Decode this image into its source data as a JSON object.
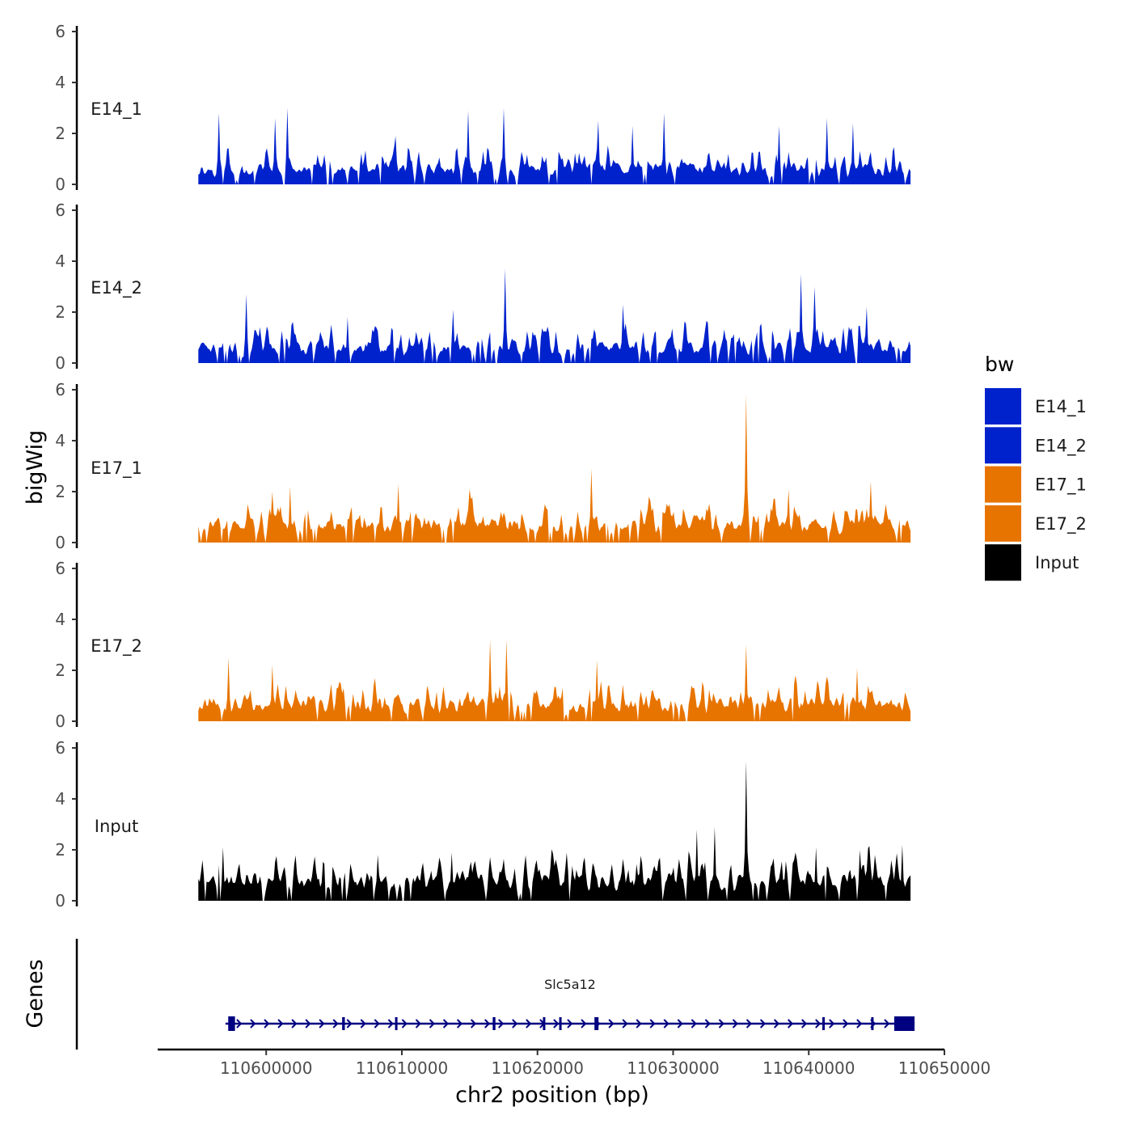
{
  "chart_data": {
    "type": "area",
    "chromosome": "chr2",
    "xlabel": "chr2 position (bp)",
    "ylabel": "bigWig",
    "xlim": [
      110592000,
      110650000
    ],
    "x_ticks": [
      110600000,
      110610000,
      110620000,
      110630000,
      110640000,
      110650000
    ],
    "x_tick_labels": [
      "110600000",
      "110610000",
      "110620000",
      "110630000",
      "110640000",
      "110650000"
    ],
    "ylim": [
      0,
      6
    ],
    "y_ticks": [
      0,
      2,
      4,
      6
    ],
    "y_tick_labels": [
      "0",
      "2",
      "4",
      "6"
    ],
    "signal_range": [
      110595000,
      110647500
    ],
    "series": [
      {
        "name": "E14_1",
        "color": "#0022CC",
        "seed": 11,
        "mean": 0.75,
        "spikes": [
          {
            "pos": 110596500,
            "val": 2.8
          },
          {
            "pos": 110600700,
            "val": 2.6
          },
          {
            "pos": 110601600,
            "val": 3.0
          },
          {
            "pos": 110609500,
            "val": 1.9
          },
          {
            "pos": 110614900,
            "val": 2.9
          },
          {
            "pos": 110617500,
            "val": 3.0
          },
          {
            "pos": 110624500,
            "val": 2.5
          },
          {
            "pos": 110627000,
            "val": 2.3
          },
          {
            "pos": 110629300,
            "val": 2.8
          },
          {
            "pos": 110637800,
            "val": 2.3
          },
          {
            "pos": 110641300,
            "val": 2.6
          },
          {
            "pos": 110643300,
            "val": 2.4
          }
        ]
      },
      {
        "name": "E14_2",
        "color": "#0022CC",
        "seed": 23,
        "mean": 0.8,
        "spikes": [
          {
            "pos": 110598500,
            "val": 2.7
          },
          {
            "pos": 110606000,
            "val": 1.8
          },
          {
            "pos": 110613800,
            "val": 2.1
          },
          {
            "pos": 110617600,
            "val": 3.7
          },
          {
            "pos": 110626300,
            "val": 2.3
          },
          {
            "pos": 110639400,
            "val": 3.5
          },
          {
            "pos": 110640400,
            "val": 3.0
          },
          {
            "pos": 110644300,
            "val": 2.2
          }
        ]
      },
      {
        "name": "E17_1",
        "color": "#E87400",
        "seed": 37,
        "mean": 0.85,
        "spikes": [
          {
            "pos": 110600500,
            "val": 2.0
          },
          {
            "pos": 110601800,
            "val": 2.2
          },
          {
            "pos": 110609700,
            "val": 2.3
          },
          {
            "pos": 110615000,
            "val": 2.1
          },
          {
            "pos": 110624000,
            "val": 2.9
          },
          {
            "pos": 110635400,
            "val": 5.8
          },
          {
            "pos": 110638500,
            "val": 2.1
          },
          {
            "pos": 110644600,
            "val": 2.4
          }
        ]
      },
      {
        "name": "E17_2",
        "color": "#E87400",
        "seed": 53,
        "mean": 0.85,
        "spikes": [
          {
            "pos": 110597200,
            "val": 2.5
          },
          {
            "pos": 110600500,
            "val": 2.2
          },
          {
            "pos": 110616500,
            "val": 3.2
          },
          {
            "pos": 110617700,
            "val": 3.2
          },
          {
            "pos": 110624400,
            "val": 2.4
          },
          {
            "pos": 110635400,
            "val": 3.0
          },
          {
            "pos": 110643600,
            "val": 2.1
          }
        ]
      },
      {
        "name": "Input",
        "color": "#000000",
        "seed": 71,
        "mean": 1.0,
        "spikes": [
          {
            "pos": 110596800,
            "val": 2.1
          },
          {
            "pos": 110608200,
            "val": 1.8
          },
          {
            "pos": 110613700,
            "val": 1.9
          },
          {
            "pos": 110631800,
            "val": 2.8
          },
          {
            "pos": 110633100,
            "val": 2.9
          },
          {
            "pos": 110635400,
            "val": 5.5
          },
          {
            "pos": 110640500,
            "val": 2.1
          },
          {
            "pos": 110643800,
            "val": 2.0
          },
          {
            "pos": 110646900,
            "val": 2.2
          }
        ]
      }
    ],
    "legend": {
      "title": "bw",
      "entries": [
        {
          "label": "E14_1",
          "color": "#0022CC"
        },
        {
          "label": "E14_2",
          "color": "#0022CC"
        },
        {
          "label": "E17_1",
          "color": "#E87400"
        },
        {
          "label": "E17_2",
          "color": "#E87400"
        },
        {
          "label": "Input",
          "color": "#000000"
        }
      ]
    },
    "genes_panel": {
      "title": "Genes",
      "genes": [
        {
          "name": "Slc5a12",
          "start": 110597000,
          "end": 110647800,
          "strand": "+",
          "color": "#000080",
          "exons": [
            {
              "start": 110597200,
              "end": 110597700
            },
            {
              "start": 110605600,
              "end": 110605800
            },
            {
              "start": 110609500,
              "end": 110609600
            },
            {
              "start": 110616700,
              "end": 110616900
            },
            {
              "start": 110620400,
              "end": 110620500
            },
            {
              "start": 110621600,
              "end": 110621700
            },
            {
              "start": 110624200,
              "end": 110624500
            },
            {
              "start": 110641000,
              "end": 110641100
            },
            {
              "start": 110644600,
              "end": 110644700
            },
            {
              "start": 110646300,
              "end": 110647800
            }
          ]
        }
      ]
    }
  }
}
